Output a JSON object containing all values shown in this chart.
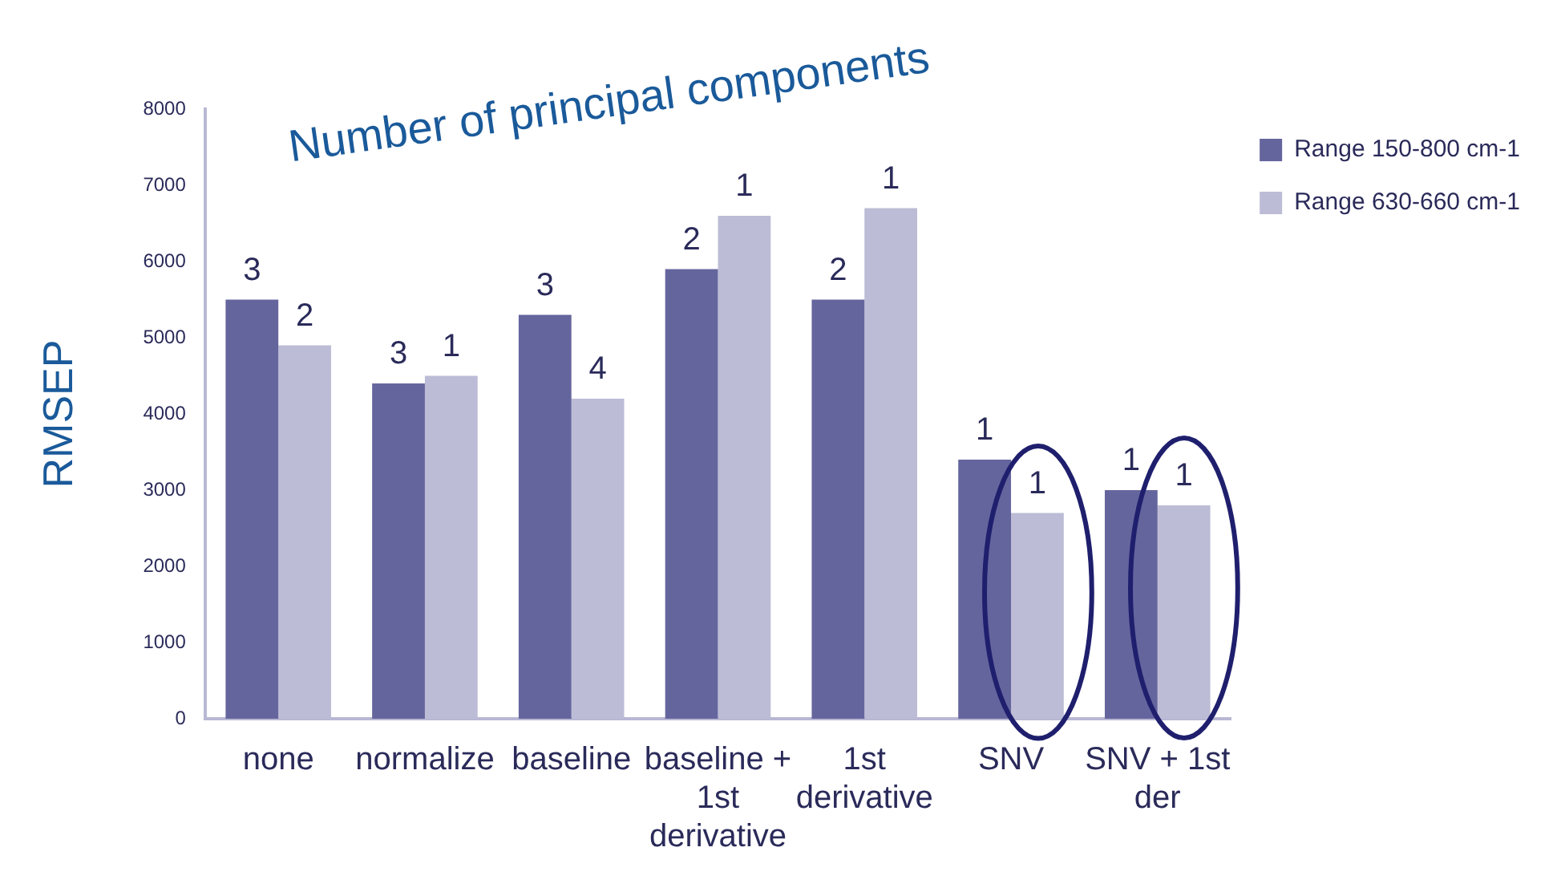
{
  "chart_data": {
    "type": "bar",
    "ylabel": "RMSEP",
    "annotations": [
      "Number of principal components",
      {
        "text": "3",
        "x": "none",
        "y": 5500
      },
      {
        "text": "2",
        "x": "none",
        "y": 4900
      },
      {
        "text": "3",
        "x": "normalize",
        "y": 4400
      },
      {
        "text": "1",
        "x": "normalize",
        "y": 4500
      },
      {
        "text": "3",
        "x": "baseline",
        "y": 5300
      },
      {
        "text": "4",
        "x": "baseline",
        "y": 4200
      },
      {
        "text": "2",
        "x": "baseline + 1st derivative",
        "y": 5900
      },
      {
        "text": "1",
        "x": "baseline + 1st derivative",
        "y": 6600
      },
      {
        "text": "2",
        "x": "1st derivative",
        "y": 5500
      },
      {
        "text": "1",
        "x": "1st derivative",
        "y": 6700
      },
      {
        "text": "1",
        "x": "SNV",
        "y": 3400
      },
      {
        "text": "1",
        "x": "SNV",
        "y": 2700
      },
      {
        "text": "1",
        "x": "SNV + 1st der",
        "y": 3000
      },
      {
        "text": "1",
        "x": "SNV + 1st der",
        "y": 2800
      }
    ],
    "categories": [
      "none",
      "normalize",
      "baseline",
      "baseline + 1st derivative",
      "1st derivative",
      "SNV",
      "SNV + 1st der"
    ],
    "series": [
      {
        "name": "Range 150-800 cm-1",
        "color": "#65659e",
        "values": [
          5500,
          4400,
          5300,
          5900,
          5500,
          3400,
          3000
        ]
      },
      {
        "name": "Range 630-660 cm-1",
        "color": "#bcbcd6",
        "values": [
          4900,
          4500,
          4200,
          6600,
          6700,
          2700,
          2800
        ]
      }
    ],
    "ylim": [
      0,
      8000
    ],
    "yticks": [
      0,
      1000,
      2000,
      3000,
      4000,
      5000,
      6000,
      7000,
      8000
    ],
    "grid": false,
    "legend": "top right"
  }
}
